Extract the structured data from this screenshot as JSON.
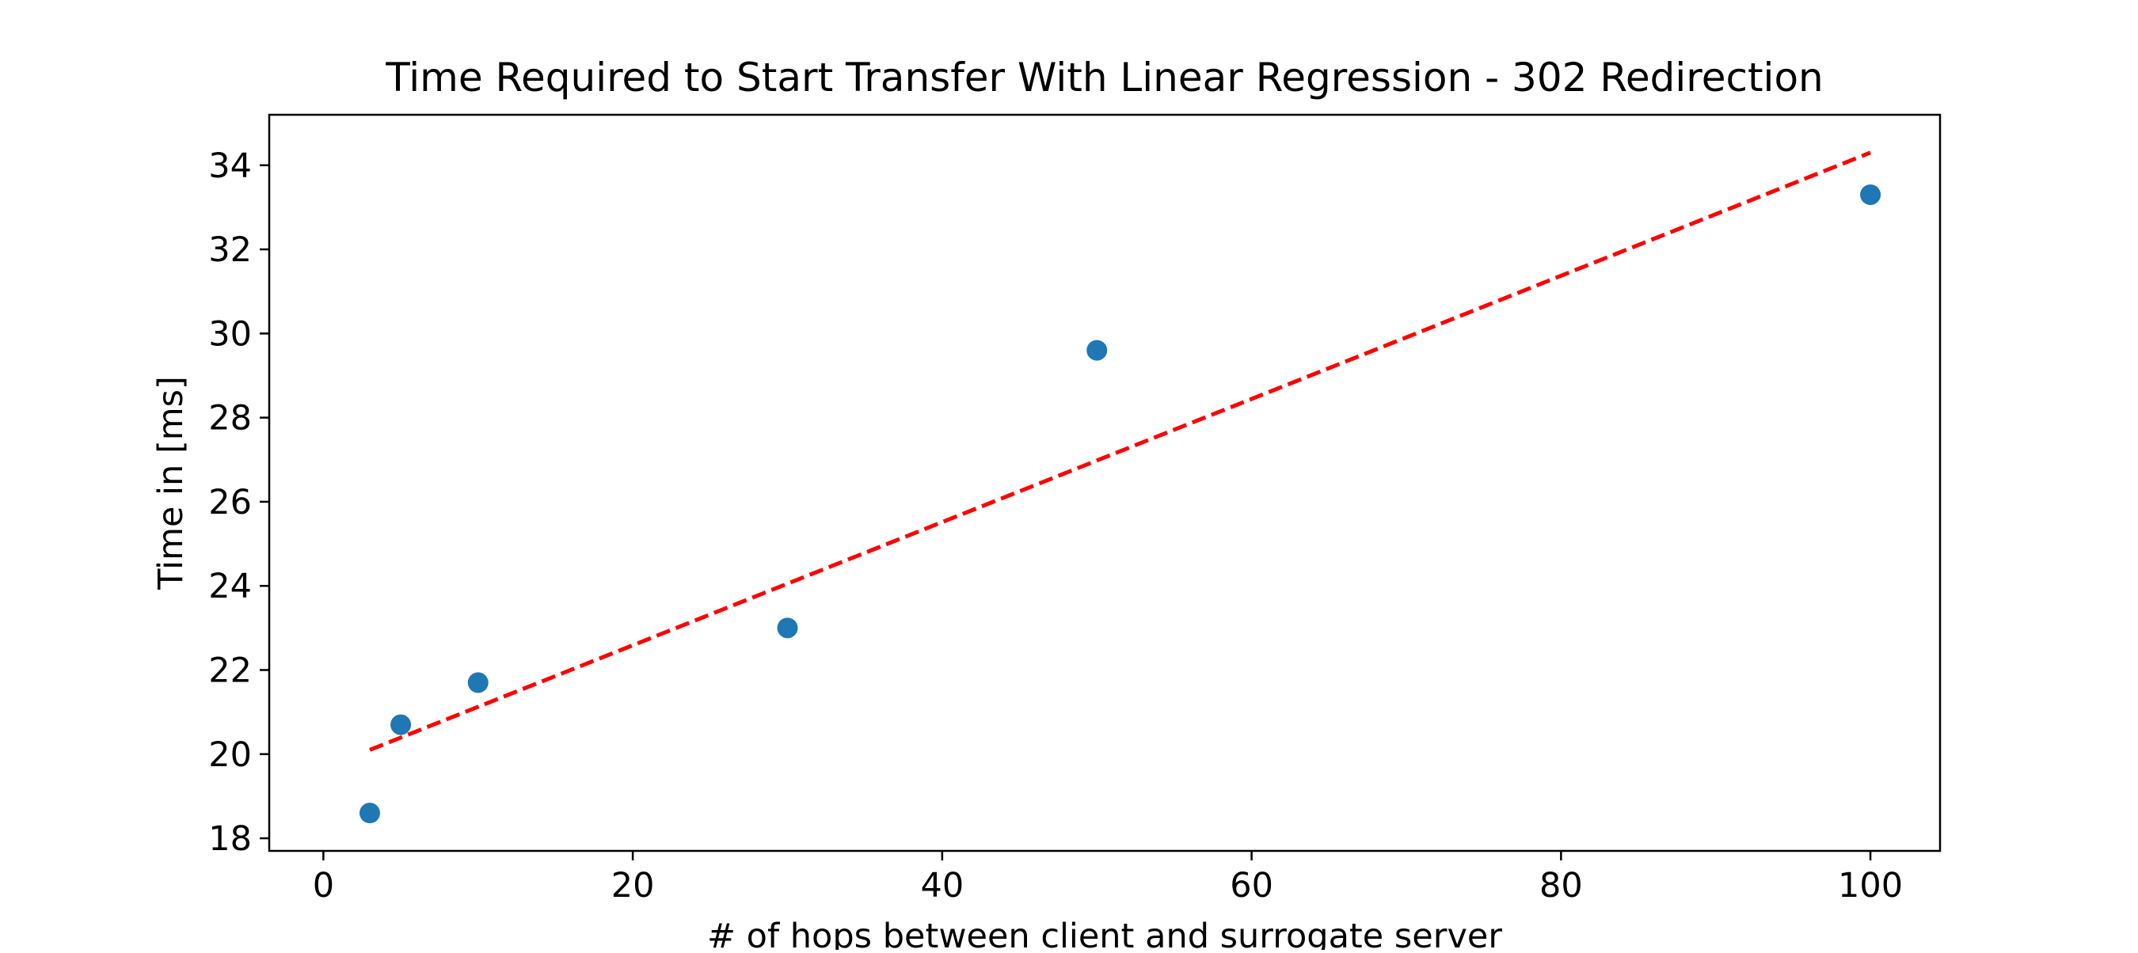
{
  "chart_data": {
    "type": "scatter",
    "title": "Time Required to Start Transfer With Linear Regression - 302 Redirection",
    "xlabel": "# of hops between client and surrogate server",
    "ylabel": "Time in [ms]",
    "xlim": [
      -3.5,
      104.5
    ],
    "ylim": [
      17.7,
      35.2
    ],
    "xticks": [
      0,
      20,
      40,
      60,
      80,
      100
    ],
    "yticks": [
      18,
      20,
      22,
      24,
      26,
      28,
      30,
      32,
      34
    ],
    "grid": false,
    "series": [
      {
        "kind": "scatter",
        "color": "#1f77b4",
        "x": [
          3,
          5,
          10,
          30,
          50,
          100
        ],
        "y": [
          18.6,
          20.7,
          21.7,
          23.0,
          29.6,
          33.3
        ]
      },
      {
        "kind": "line",
        "style": "dashed",
        "color": "#ff0000",
        "x": [
          3,
          100
        ],
        "y": [
          20.1,
          34.3
        ]
      }
    ]
  }
}
